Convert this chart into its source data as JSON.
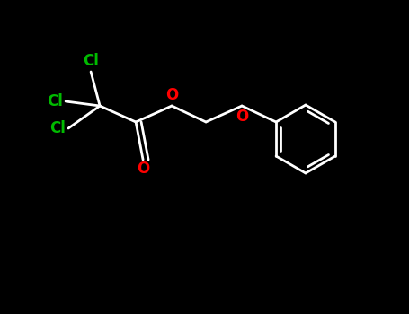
{
  "background_color": "#000000",
  "bond_color": "#ffffff",
  "bond_width": 2.0,
  "atom_colors": {
    "O": "#ff0000",
    "Cl": "#00bb00"
  },
  "figsize": [
    4.55,
    3.5
  ],
  "dpi": 100
}
